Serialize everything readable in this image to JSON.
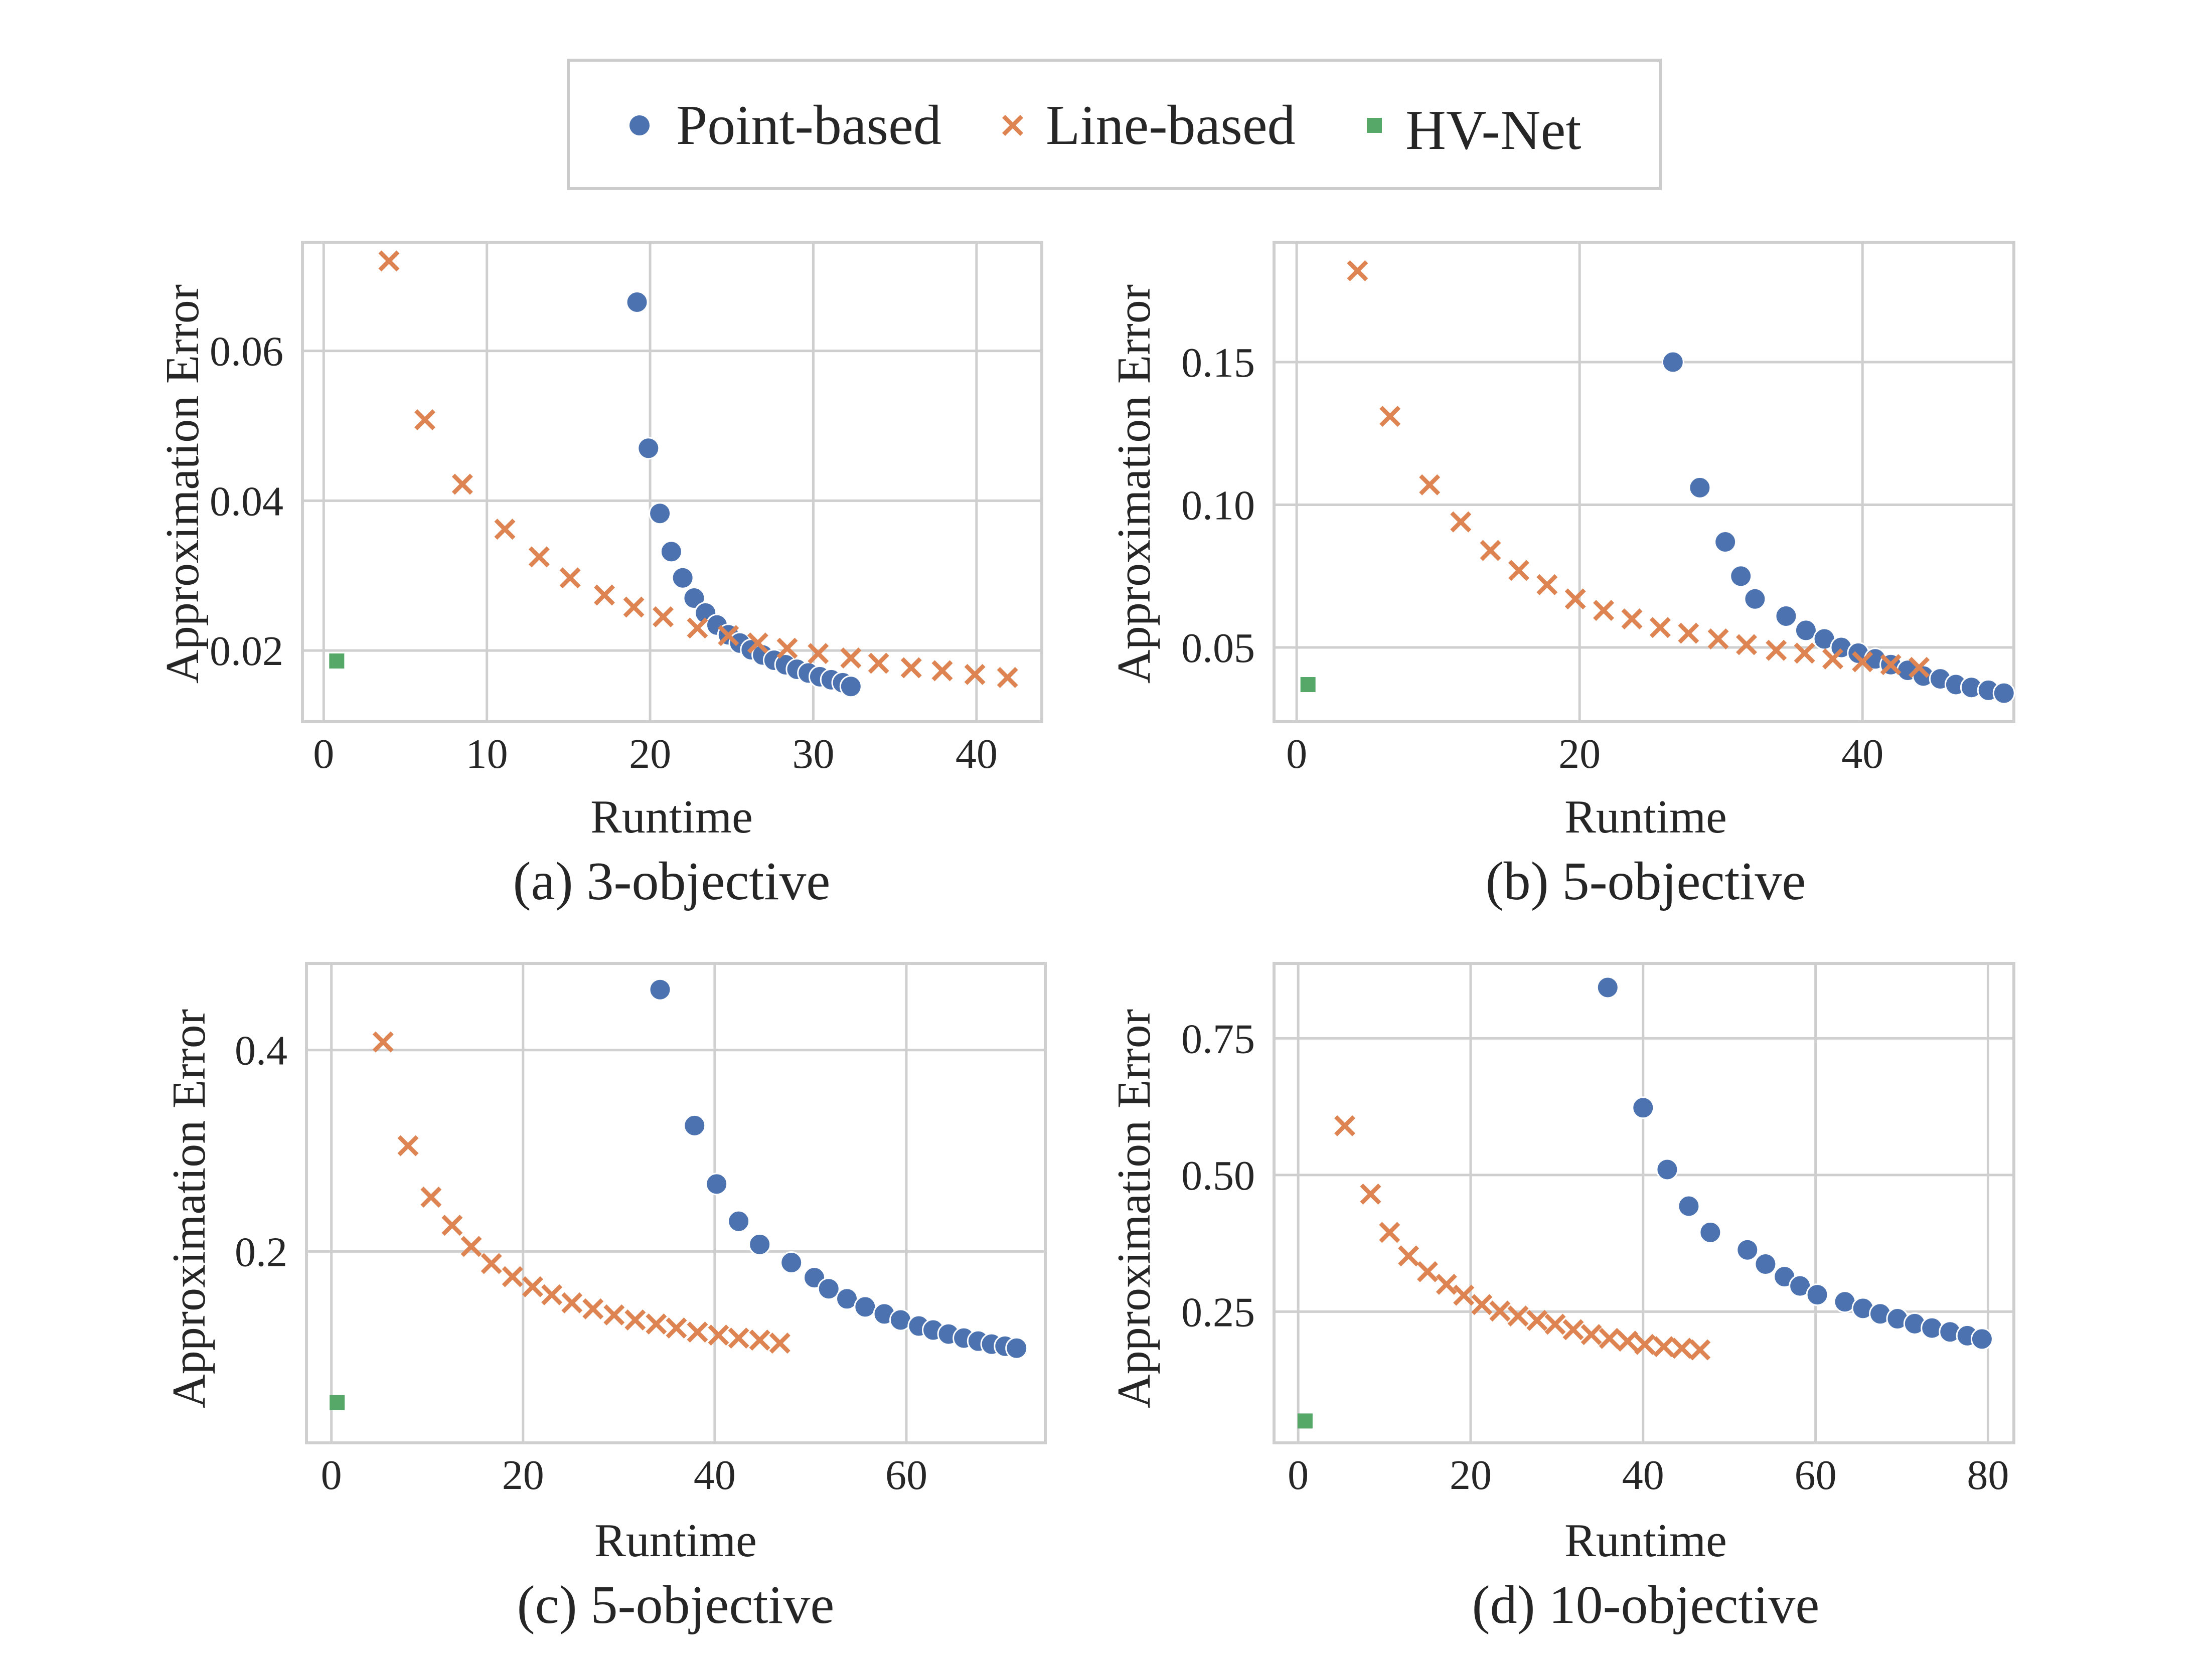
{
  "legend": {
    "placement": "top-center",
    "items": [
      {
        "label": "Point-based",
        "marker": "circle",
        "color": "#4c72b0"
      },
      {
        "label": "Line-based",
        "marker": "x",
        "color": "#dd8452"
      },
      {
        "label": "HV-Net",
        "marker": "square",
        "color": "#55a868"
      }
    ]
  },
  "chart_data": [
    {
      "type": "scatter",
      "caption": "(a) 3-objective",
      "xlabel": "Runtime",
      "ylabel": "Approximation Error",
      "xlim": [
        -1.3,
        44
      ],
      "ylim": [
        0.0105,
        0.0745
      ],
      "xticks": [
        0,
        10,
        20,
        30,
        40
      ],
      "yticks": [
        0.02,
        0.04,
        0.06
      ],
      "ytick_labels": [
        "0.02",
        "0.04",
        "0.06"
      ],
      "grid": true,
      "series": [
        {
          "name": "Point-based",
          "x": [
            19.2,
            19.9,
            20.6,
            21.3,
            22.0,
            22.7,
            23.4,
            24.1,
            24.8,
            25.5,
            26.2,
            26.9,
            27.6,
            28.3,
            29.0,
            29.7,
            30.4,
            31.1,
            31.8,
            32.3
          ],
          "y": [
            0.0665,
            0.047,
            0.0383,
            0.0332,
            0.0297,
            0.027,
            0.025,
            0.0234,
            0.0221,
            0.021,
            0.0201,
            0.0194,
            0.0187,
            0.0181,
            0.0175,
            0.017,
            0.0165,
            0.0161,
            0.0157,
            0.0152
          ]
        },
        {
          "name": "Line-based",
          "x": [
            4.0,
            6.2,
            8.5,
            11.1,
            13.2,
            15.1,
            17.2,
            19.0,
            20.8,
            22.9,
            24.8,
            26.6,
            28.4,
            30.3,
            32.3,
            34.0,
            36.0,
            37.9,
            39.9,
            41.9
          ],
          "y": [
            0.072,
            0.0508,
            0.0422,
            0.0362,
            0.0325,
            0.0297,
            0.0274,
            0.0258,
            0.0245,
            0.023,
            0.022,
            0.021,
            0.0203,
            0.0196,
            0.019,
            0.0183,
            0.0177,
            0.0173,
            0.0168,
            0.0164
          ]
        },
        {
          "name": "HV-Net",
          "x": [
            0.8
          ],
          "y": [
            0.0186
          ]
        }
      ]
    },
    {
      "type": "scatter",
      "caption": "(b) 5-objective",
      "xlabel": "Runtime",
      "ylabel": "Approximation Error",
      "xlim": [
        -1.6,
        50.7
      ],
      "ylim": [
        0.024,
        0.192
      ],
      "xticks": [
        0,
        20,
        40
      ],
      "yticks": [
        0.05,
        0.1,
        0.15
      ],
      "ytick_labels": [
        "0.05",
        "0.10",
        "0.15"
      ],
      "grid": true,
      "series": [
        {
          "name": "Point-based",
          "x": [
            26.6,
            28.5,
            30.3,
            31.4,
            32.4,
            34.6,
            36.0,
            37.3,
            38.5,
            39.7,
            40.9,
            42.0,
            43.2,
            44.3,
            45.5,
            46.6,
            47.7,
            48.9,
            50.0
          ],
          "y": [
            0.15,
            0.106,
            0.087,
            0.075,
            0.067,
            0.061,
            0.056,
            0.053,
            0.05,
            0.048,
            0.046,
            0.044,
            0.042,
            0.04,
            0.039,
            0.037,
            0.036,
            0.035,
            0.034
          ]
        },
        {
          "name": "Line-based",
          "x": [
            4.3,
            6.6,
            9.4,
            11.6,
            13.7,
            15.7,
            17.7,
            19.7,
            21.7,
            23.7,
            25.7,
            27.7,
            29.8,
            31.8,
            33.9,
            35.9,
            37.9,
            40.0,
            42.0,
            44.0
          ],
          "y": [
            0.182,
            0.131,
            0.107,
            0.094,
            0.084,
            0.077,
            0.072,
            0.067,
            0.063,
            0.06,
            0.057,
            0.055,
            0.053,
            0.051,
            0.049,
            0.048,
            0.046,
            0.045,
            0.044,
            0.043
          ]
        },
        {
          "name": "HV-Net",
          "x": [
            0.8
          ],
          "y": [
            0.037
          ]
        }
      ]
    },
    {
      "type": "scatter",
      "caption": "(c) 5-objective",
      "xlabel": "Runtime",
      "ylabel": "Approximation Error",
      "xlim": [
        -2.6,
        74.5
      ],
      "ylim": [
        0.01,
        0.486
      ],
      "xticks": [
        0,
        20,
        40,
        60
      ],
      "yticks": [
        0.2,
        0.4
      ],
      "ytick_labels": [
        "0.2",
        "0.4"
      ],
      "grid": true,
      "series": [
        {
          "name": "Point-based",
          "x": [
            34.3,
            37.9,
            40.2,
            42.5,
            44.7,
            48.0,
            50.4,
            51.9,
            53.8,
            55.7,
            57.7,
            59.4,
            61.3,
            62.8,
            64.4,
            66.0,
            67.5,
            68.9,
            70.3,
            71.5
          ],
          "y": [
            0.46,
            0.325,
            0.267,
            0.23,
            0.207,
            0.189,
            0.174,
            0.163,
            0.153,
            0.145,
            0.138,
            0.132,
            0.126,
            0.122,
            0.118,
            0.114,
            0.111,
            0.108,
            0.106,
            0.104
          ]
        },
        {
          "name": "Line-based",
          "x": [
            5.4,
            8.0,
            10.4,
            12.6,
            14.6,
            16.7,
            18.9,
            21.0,
            23.0,
            25.1,
            27.3,
            29.5,
            31.7,
            33.9,
            36.0,
            38.2,
            40.4,
            42.5,
            44.7,
            46.8
          ],
          "y": [
            0.408,
            0.305,
            0.254,
            0.226,
            0.205,
            0.188,
            0.175,
            0.165,
            0.157,
            0.149,
            0.143,
            0.137,
            0.132,
            0.128,
            0.124,
            0.12,
            0.117,
            0.114,
            0.112,
            0.109
          ]
        },
        {
          "name": "HV-Net",
          "x": [
            0.6
          ],
          "y": [
            0.05
          ]
        }
      ]
    },
    {
      "type": "scatter",
      "caption": "(d) 10-objective",
      "xlabel": "Runtime",
      "ylabel": "Approximation Error",
      "xlim": [
        -2.8,
        83
      ],
      "ylim": [
        0.01,
        0.887
      ],
      "xticks": [
        0,
        20,
        40,
        60,
        80
      ],
      "yticks": [
        0.25,
        0.5,
        0.75
      ],
      "ytick_labels": [
        "0.25",
        "0.50",
        "0.75"
      ],
      "grid": true,
      "series": [
        {
          "name": "Point-based",
          "x": [
            35.9,
            40.0,
            42.8,
            45.3,
            47.8,
            52.1,
            54.2,
            56.4,
            58.2,
            60.2,
            63.4,
            65.5,
            67.5,
            69.5,
            71.5,
            73.5,
            75.6,
            77.6,
            79.3
          ],
          "y": [
            0.843,
            0.623,
            0.51,
            0.443,
            0.395,
            0.363,
            0.337,
            0.314,
            0.297,
            0.281,
            0.268,
            0.256,
            0.246,
            0.237,
            0.228,
            0.22,
            0.213,
            0.206,
            0.2
          ]
        },
        {
          "name": "Line-based",
          "x": [
            5.4,
            8.4,
            10.6,
            12.8,
            15.0,
            17.2,
            19.2,
            21.3,
            23.4,
            25.5,
            27.7,
            29.8,
            31.9,
            34.0,
            36.1,
            38.2,
            40.2,
            42.4,
            44.5,
            46.6
          ],
          "y": [
            0.59,
            0.465,
            0.395,
            0.352,
            0.323,
            0.3,
            0.28,
            0.263,
            0.251,
            0.242,
            0.234,
            0.227,
            0.217,
            0.208,
            0.201,
            0.196,
            0.19,
            0.186,
            0.183,
            0.18
          ]
        },
        {
          "name": "HV-Net",
          "x": [
            0.8
          ],
          "y": [
            0.05
          ]
        }
      ]
    }
  ]
}
